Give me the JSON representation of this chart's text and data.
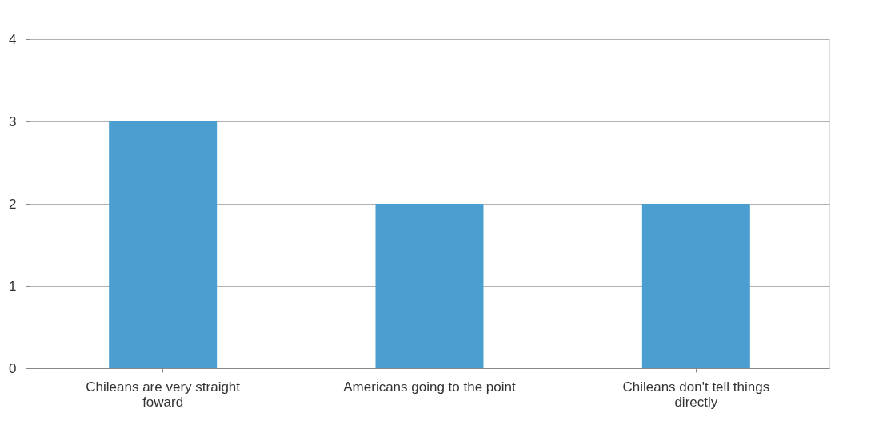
{
  "chart_data": {
    "type": "bar",
    "categories": [
      "Chileans are very straight foward",
      "Americans going to the point",
      "Chileans don't tell things directly"
    ],
    "values": [
      3,
      2,
      2
    ],
    "color": "#4a9fd0",
    "ylim": [
      0,
      4
    ],
    "yticks": [
      0,
      1,
      2,
      3,
      4
    ],
    "grid": "y"
  }
}
